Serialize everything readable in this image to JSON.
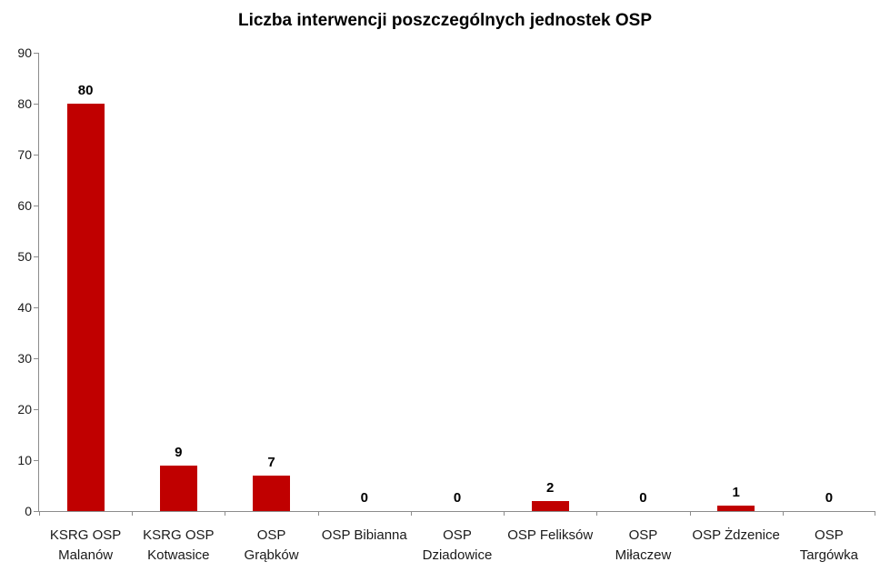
{
  "chart_data": {
    "type": "bar",
    "title": "Liczba interwencji poszczególnych jednostek OSP",
    "categories": [
      "KSRG OSP Malanów",
      "KSRG OSP Kotwasice",
      "OSP Grąbków",
      "OSP Bibianna",
      "OSP Dziadowice",
      "OSP Feliksów",
      "OSP Miłaczew",
      "OSP Żdzenice",
      "OSP Targówka"
    ],
    "category_label_lines": [
      [
        "KSRG OSP",
        "Malanów"
      ],
      [
        "KSRG OSP",
        "Kotwasice"
      ],
      [
        "OSP",
        "Grąbków"
      ],
      [
        "OSP Bibianna"
      ],
      [
        "OSP",
        "Dziadowice"
      ],
      [
        "OSP Feliksów"
      ],
      [
        "OSP",
        "Miłaczew"
      ],
      [
        "OSP Żdzenice"
      ],
      [
        "OSP",
        "Targówka"
      ]
    ],
    "values": [
      80,
      9,
      7,
      0,
      0,
      2,
      0,
      1,
      0
    ],
    "data_labels": [
      80,
      9,
      7,
      0,
      0,
      2,
      0,
      1,
      0
    ],
    "xlabel": "",
    "ylabel": "",
    "ylim": [
      0,
      90
    ],
    "ytick_step": 10,
    "ytick_labels": [
      "0",
      "10",
      "20",
      "30",
      "40",
      "50",
      "60",
      "70",
      "80",
      "90"
    ],
    "grid": false,
    "legend": "none",
    "colors": {
      "bar": "#C00000",
      "axis": "#8C8C8C",
      "title_text": "#000000",
      "data_label_text": "#000000",
      "tick_label_text": "#1a1a1a",
      "background": "#ffffff"
    }
  }
}
